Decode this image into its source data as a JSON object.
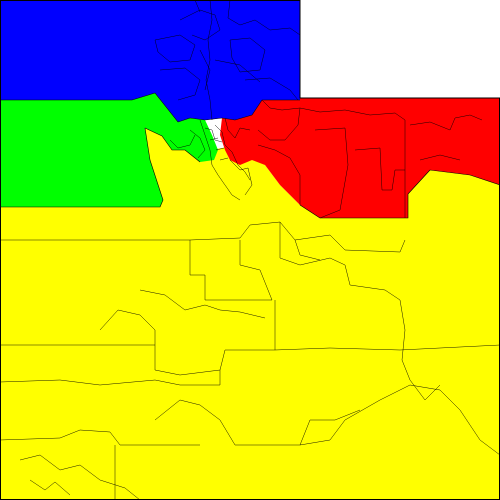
{
  "map": {
    "regions": [
      {
        "id": "north",
        "color": "#0000ff"
      },
      {
        "id": "west",
        "color": "#00ff00"
      },
      {
        "id": "east",
        "color": "#ff0000"
      },
      {
        "id": "south",
        "color": "#ffff00"
      }
    ],
    "boundary_color": "#000000",
    "background_color": "#ffffff"
  }
}
